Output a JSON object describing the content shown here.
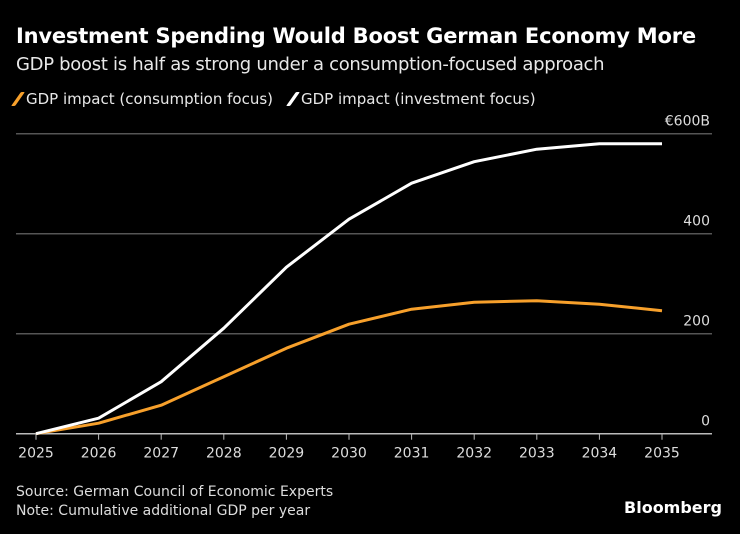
{
  "chart_data": {
    "type": "line",
    "title": "Investment Spending Would Boost German Economy More",
    "subtitle": "GDP boost is half as strong under a consumption-focused approach",
    "x": [
      2025,
      2026,
      2027,
      2028,
      2029,
      2030,
      2031,
      2032,
      2033,
      2034,
      2035
    ],
    "x_tick_labels": [
      "2025",
      "2026",
      "2027",
      "2028",
      "2029",
      "2030",
      "2031",
      "2032",
      "2033",
      "2034",
      "2035"
    ],
    "y_tick_labels": [
      "0",
      "200",
      "400",
      "€600B"
    ],
    "y_ticks": [
      0,
      200,
      400,
      600
    ],
    "ylim": [
      0,
      600
    ],
    "y_axis_position": "right",
    "grid": true,
    "legend_placement": "top-left",
    "series": [
      {
        "name": "GDP impact (consumption focus)",
        "color": "#f7a02b",
        "values": [
          0,
          21,
          57,
          114,
          171,
          219,
          249,
          263,
          266,
          259,
          246
        ]
      },
      {
        "name": "GDP impact (investment focus)",
        "color": "#ffffff",
        "values": [
          0,
          31,
          104,
          211,
          333,
          429,
          501,
          544,
          569,
          580,
          580
        ]
      }
    ]
  },
  "footer": {
    "source": "Source: German Council of Economic Experts",
    "note": "Note: Cumulative additional GDP per year",
    "logo": "Bloomberg"
  }
}
